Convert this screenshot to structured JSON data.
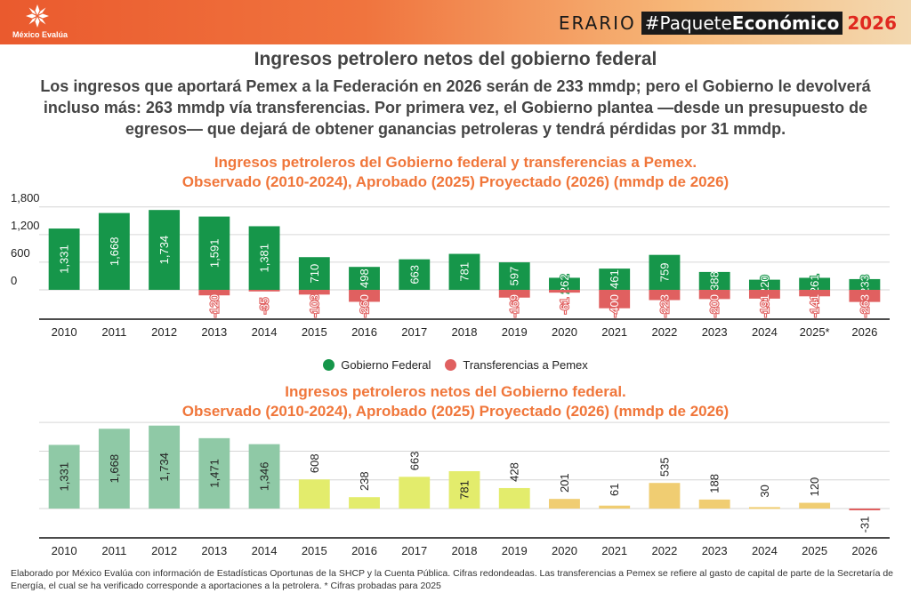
{
  "header": {
    "logo_text": "México Evalúa",
    "brand_erario": "ERARIO",
    "brand_paquete_1": "#Paquete",
    "brand_paquete_2": "Económico",
    "brand_year": "2026"
  },
  "headline": "Ingresos petrolero netos del gobierno federal",
  "subtitle": "Los ingresos que aportará Pemex a la Federación en 2026 serán de 233 mmdp; pero el Gobierno le devolverá incluso más: 263 mmdp vía transferencias. Por primera vez, el Gobierno plantea —desde un presupuesto de egresos— que dejará de obtener ganancias petroleras y tendrá pérdidas por 31 mmdp.",
  "colors": {
    "federal": "#16964a",
    "transfer": "#e06060",
    "net_early": "#8fc9a6",
    "net_mid": "#e3ec6c",
    "net_late": "#f0cd72",
    "net_negative": "#e06060",
    "title_orange": "#f0763a"
  },
  "chart_data": [
    {
      "type": "bar",
      "title_line1": "Ingresos petroleros del Gobierno federal y transferencias a Pemex.",
      "title_line2": "Observado (2010-2024), Aprobado (2025) Proyectado (2026)  (mmdp de 2026)",
      "categories": [
        "2010",
        "2011",
        "2012",
        "2013",
        "2014",
        "2015",
        "2016",
        "2017",
        "2018",
        "2019",
        "2020",
        "2021",
        "2022",
        "2023",
        "2024",
        "2025*",
        "2026"
      ],
      "series": [
        {
          "name": "Gobierno Federal",
          "values": [
            1331,
            1668,
            1734,
            1591,
            1381,
            710,
            498,
            663,
            781,
            597,
            262,
            461,
            759,
            388,
            220,
            261,
            233
          ]
        },
        {
          "name": "Transferencias a Pemex",
          "values": [
            null,
            null,
            null,
            -120,
            -35,
            -103,
            -260,
            null,
            null,
            -169,
            -61,
            -400,
            -223,
            -200,
            -191,
            -141,
            -263
          ]
        }
      ],
      "y_ticks": [
        "1,800",
        "1,200",
        "600",
        "0"
      ],
      "ylim": [
        -650,
        2000
      ],
      "grid": true,
      "legend_position": "bottom"
    },
    {
      "type": "bar",
      "title_line1": "Ingresos petroleros netos del Gobierno federal.",
      "title_line2": "Observado (2010-2024), Aprobado (2025) Proyectado (2026)  (mmdp de 2026)",
      "categories": [
        "2010",
        "2011",
        "2012",
        "2013",
        "2014",
        "2015",
        "2016",
        "2017",
        "2018",
        "2019",
        "2020",
        "2021",
        "2022",
        "2023",
        "2024",
        "2025",
        "2026"
      ],
      "values": [
        1331,
        1668,
        1734,
        1471,
        1346,
        608,
        238,
        663,
        781,
        428,
        201,
        61,
        535,
        188,
        30,
        120,
        -31
      ],
      "ylim": [
        -600,
        2000
      ],
      "grid": true
    }
  ],
  "footnote": "Elaborado por México Evalúa con información de Estadísticas Oportunas de la SHCP y la Cuenta Pública. Cifras redondeadas. Las transferencias a Pemex se refiere al gasto de capital de parte de la Secretaría de Energía, el cual se ha verificado corresponde a aportaciones a la petrolera. * Cifras probadas para 2025"
}
